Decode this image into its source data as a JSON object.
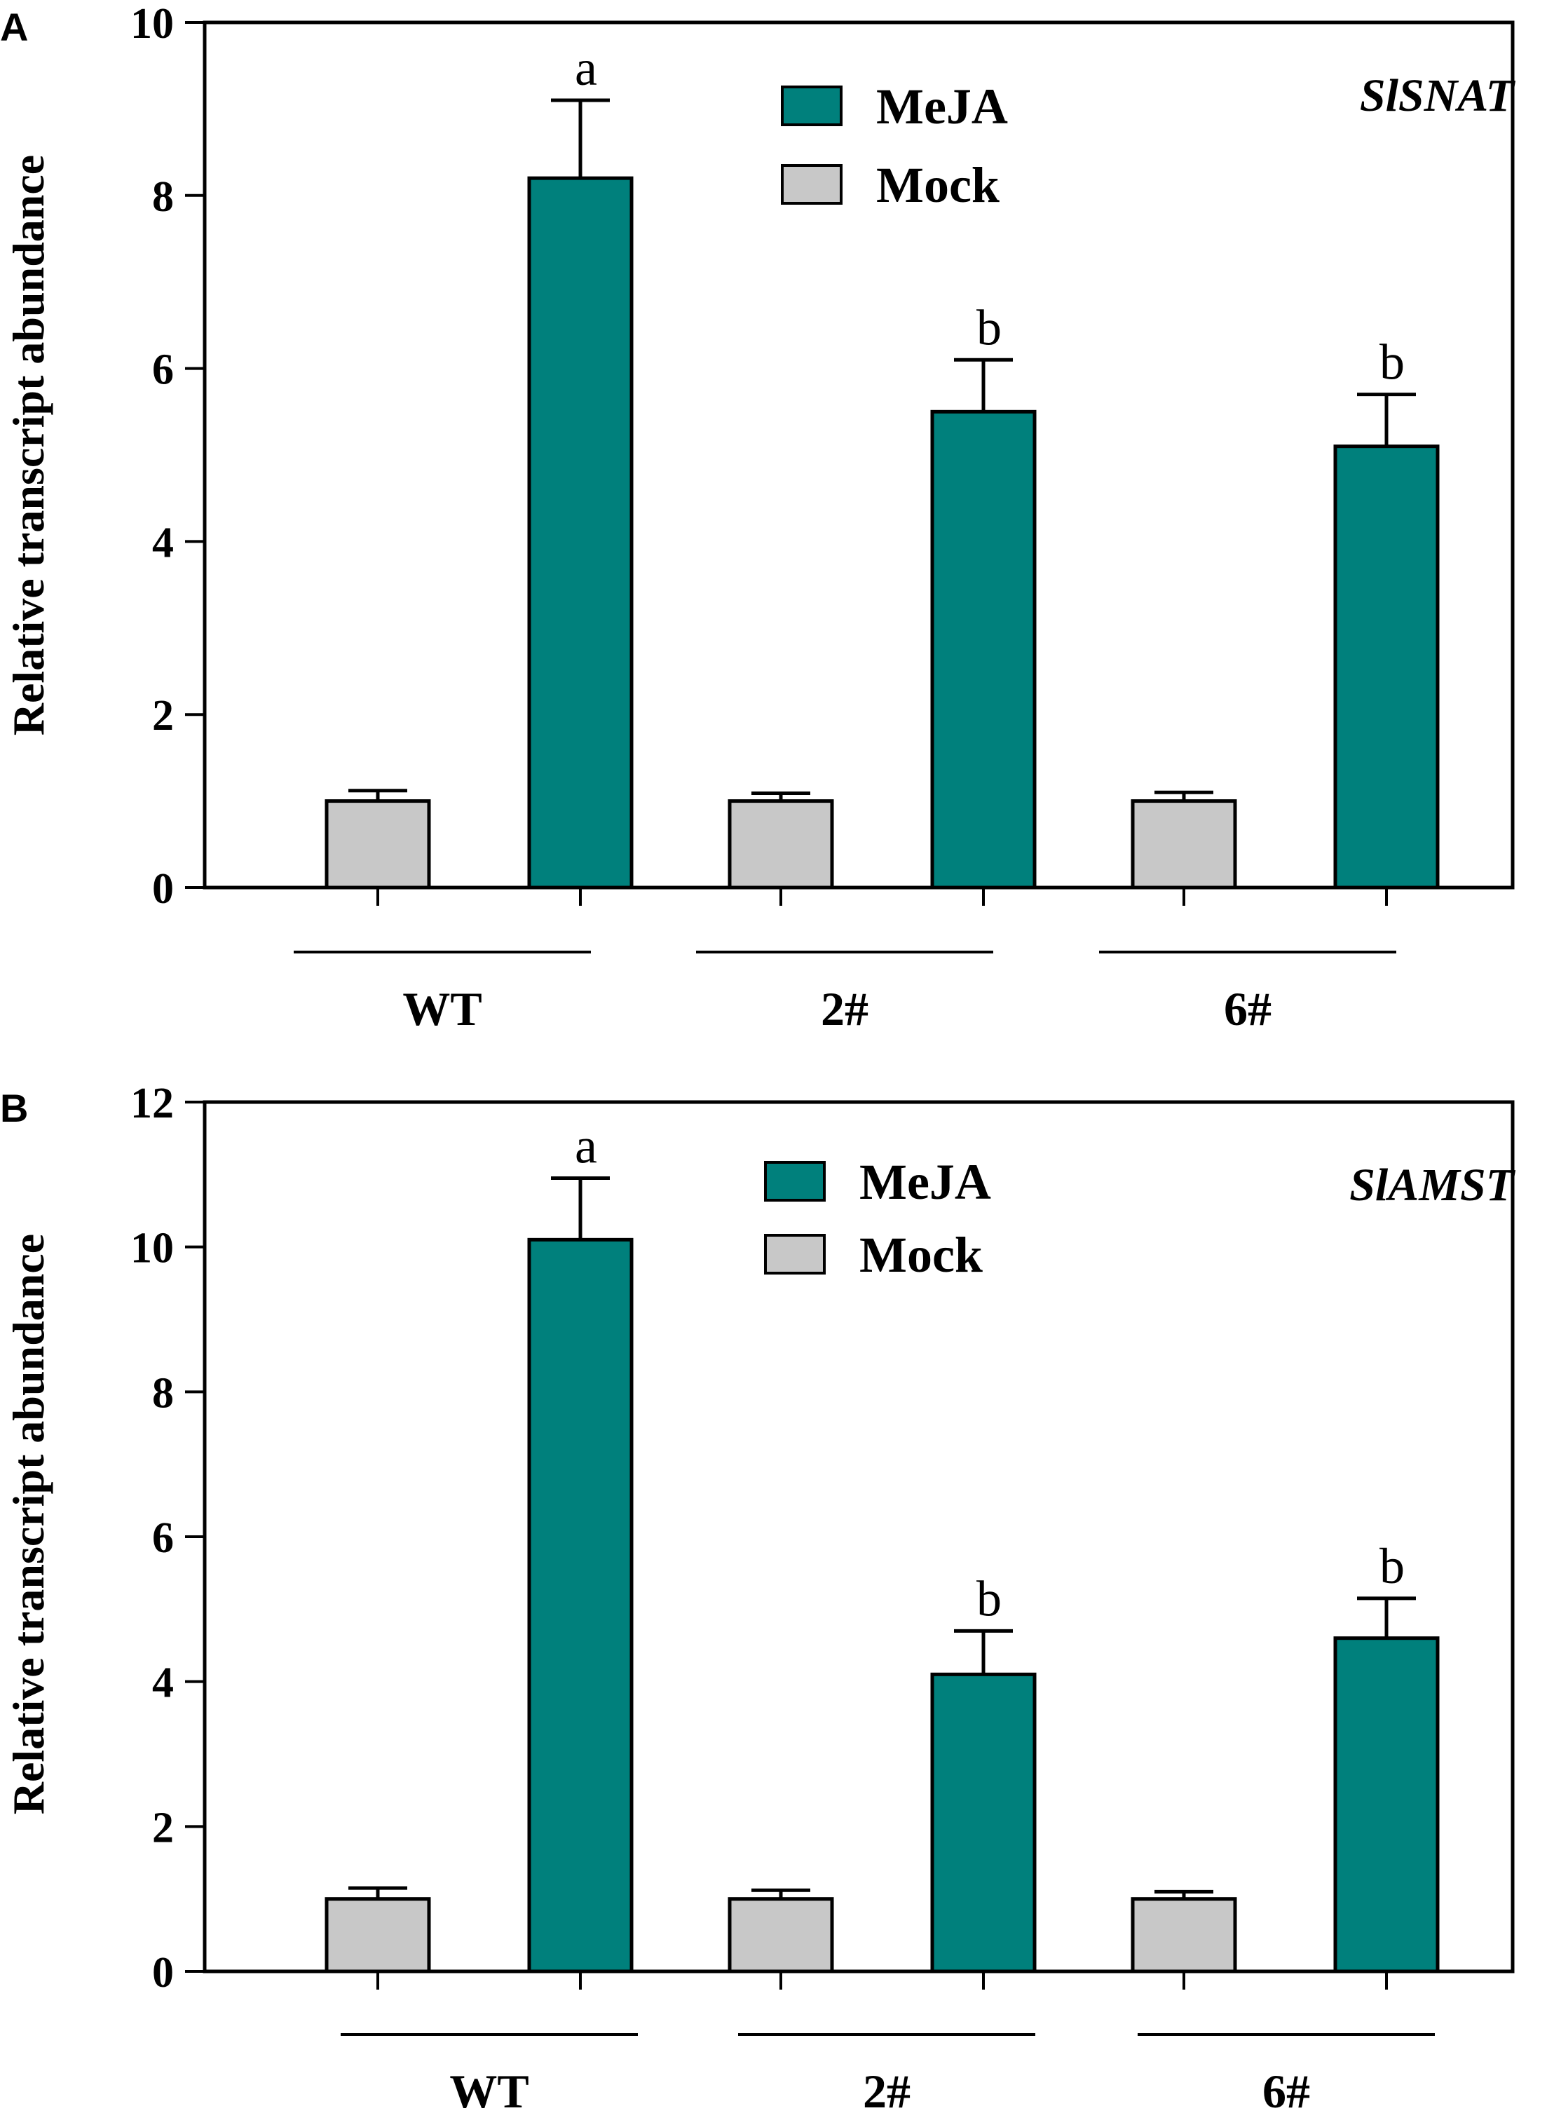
{
  "colors": {
    "mejca": "#00807c",
    "mock": "#c8c8c8",
    "stroke": "#000000"
  },
  "chart_data": [
    {
      "panel": "A",
      "type": "bar",
      "gene": "SlSNAT",
      "ylabel": "Relative transcript abundance",
      "ylim": [
        0,
        10
      ],
      "yticks": [
        0,
        2,
        4,
        6,
        8,
        10
      ],
      "groups": [
        "WT",
        "2#",
        "6#"
      ],
      "legend": [
        "MeJA",
        "Mock"
      ],
      "series": [
        {
          "name": "Mock",
          "values": [
            1.0,
            1.0,
            1.0
          ],
          "errors": [
            0.12,
            0.09,
            0.1
          ],
          "letters": [
            "",
            "",
            ""
          ]
        },
        {
          "name": "MeJA",
          "values": [
            8.2,
            5.5,
            5.1
          ],
          "errors": [
            0.9,
            0.6,
            0.6
          ],
          "letters": [
            "a",
            "b",
            "b"
          ]
        }
      ]
    },
    {
      "panel": "B",
      "type": "bar",
      "gene": "SlAMST",
      "ylabel": "Relative transcript abundance",
      "ylim": [
        0,
        12
      ],
      "yticks": [
        0,
        2,
        4,
        6,
        8,
        10,
        12
      ],
      "groups": [
        "WT",
        "2#",
        "6#"
      ],
      "legend": [
        "MeJA",
        "Mock"
      ],
      "series": [
        {
          "name": "Mock",
          "values": [
            1.0,
            1.0,
            1.0
          ],
          "errors": [
            0.15,
            0.12,
            0.1
          ],
          "letters": [
            "",
            "",
            ""
          ]
        },
        {
          "name": "MeJA",
          "values": [
            10.1,
            4.1,
            4.6
          ],
          "errors": [
            0.85,
            0.6,
            0.55
          ],
          "letters": [
            "a",
            "b",
            "b"
          ]
        }
      ]
    }
  ]
}
